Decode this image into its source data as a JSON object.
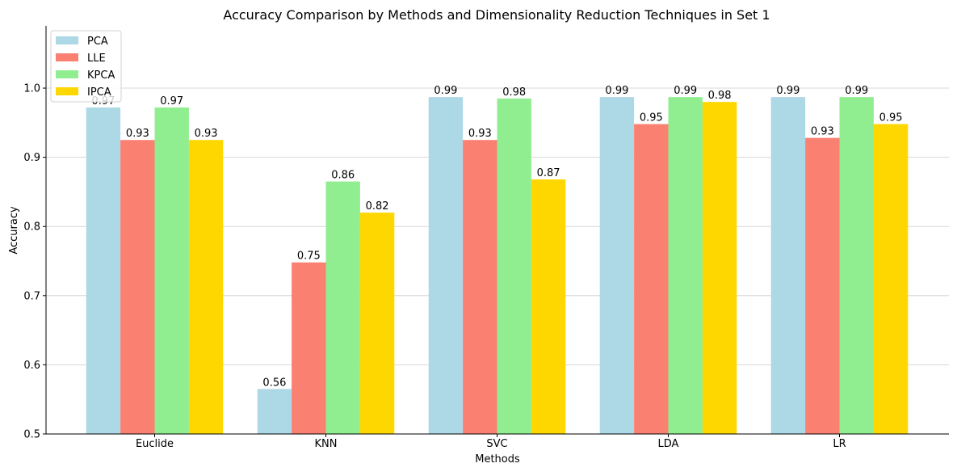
{
  "chart_data": {
    "type": "bar",
    "title": "Accuracy Comparison by Methods and Dimensionality Reduction Techniques in Set 1",
    "xlabel": "Methods",
    "ylabel": "Accuracy",
    "categories": [
      "Euclide",
      "KNN",
      "SVC",
      "LDA",
      "LR"
    ],
    "ylim": [
      0.5,
      1.09
    ],
    "yticks": [
      0.5,
      0.6,
      0.7,
      0.8,
      0.9,
      1.0
    ],
    "ytick_labels": [
      "0.5",
      "0.6",
      "0.7",
      "0.8",
      "0.9",
      "1.0"
    ],
    "grid": "horizontal",
    "legend_position": "top-left",
    "series": [
      {
        "name": "PCA",
        "color": "#add8e6",
        "values": [
          0.972,
          0.565,
          0.987,
          0.987,
          0.987
        ],
        "labels": [
          "0.97",
          "0.56",
          "0.99",
          "0.99",
          "0.99"
        ]
      },
      {
        "name": "LLE",
        "color": "#fa8072",
        "values": [
          0.925,
          0.748,
          0.925,
          0.948,
          0.928
        ],
        "labels": [
          "0.93",
          "0.75",
          "0.93",
          "0.95",
          "0.93"
        ]
      },
      {
        "name": "KPCA",
        "color": "#90ee90",
        "values": [
          0.972,
          0.865,
          0.985,
          0.987,
          0.987
        ],
        "labels": [
          "0.97",
          "0.86",
          "0.98",
          "0.99",
          "0.99"
        ]
      },
      {
        "name": "IPCA",
        "color": "#ffd700",
        "values": [
          0.925,
          0.82,
          0.868,
          0.98,
          0.948
        ],
        "labels": [
          "0.93",
          "0.82",
          "0.87",
          "0.98",
          "0.95"
        ]
      }
    ]
  }
}
